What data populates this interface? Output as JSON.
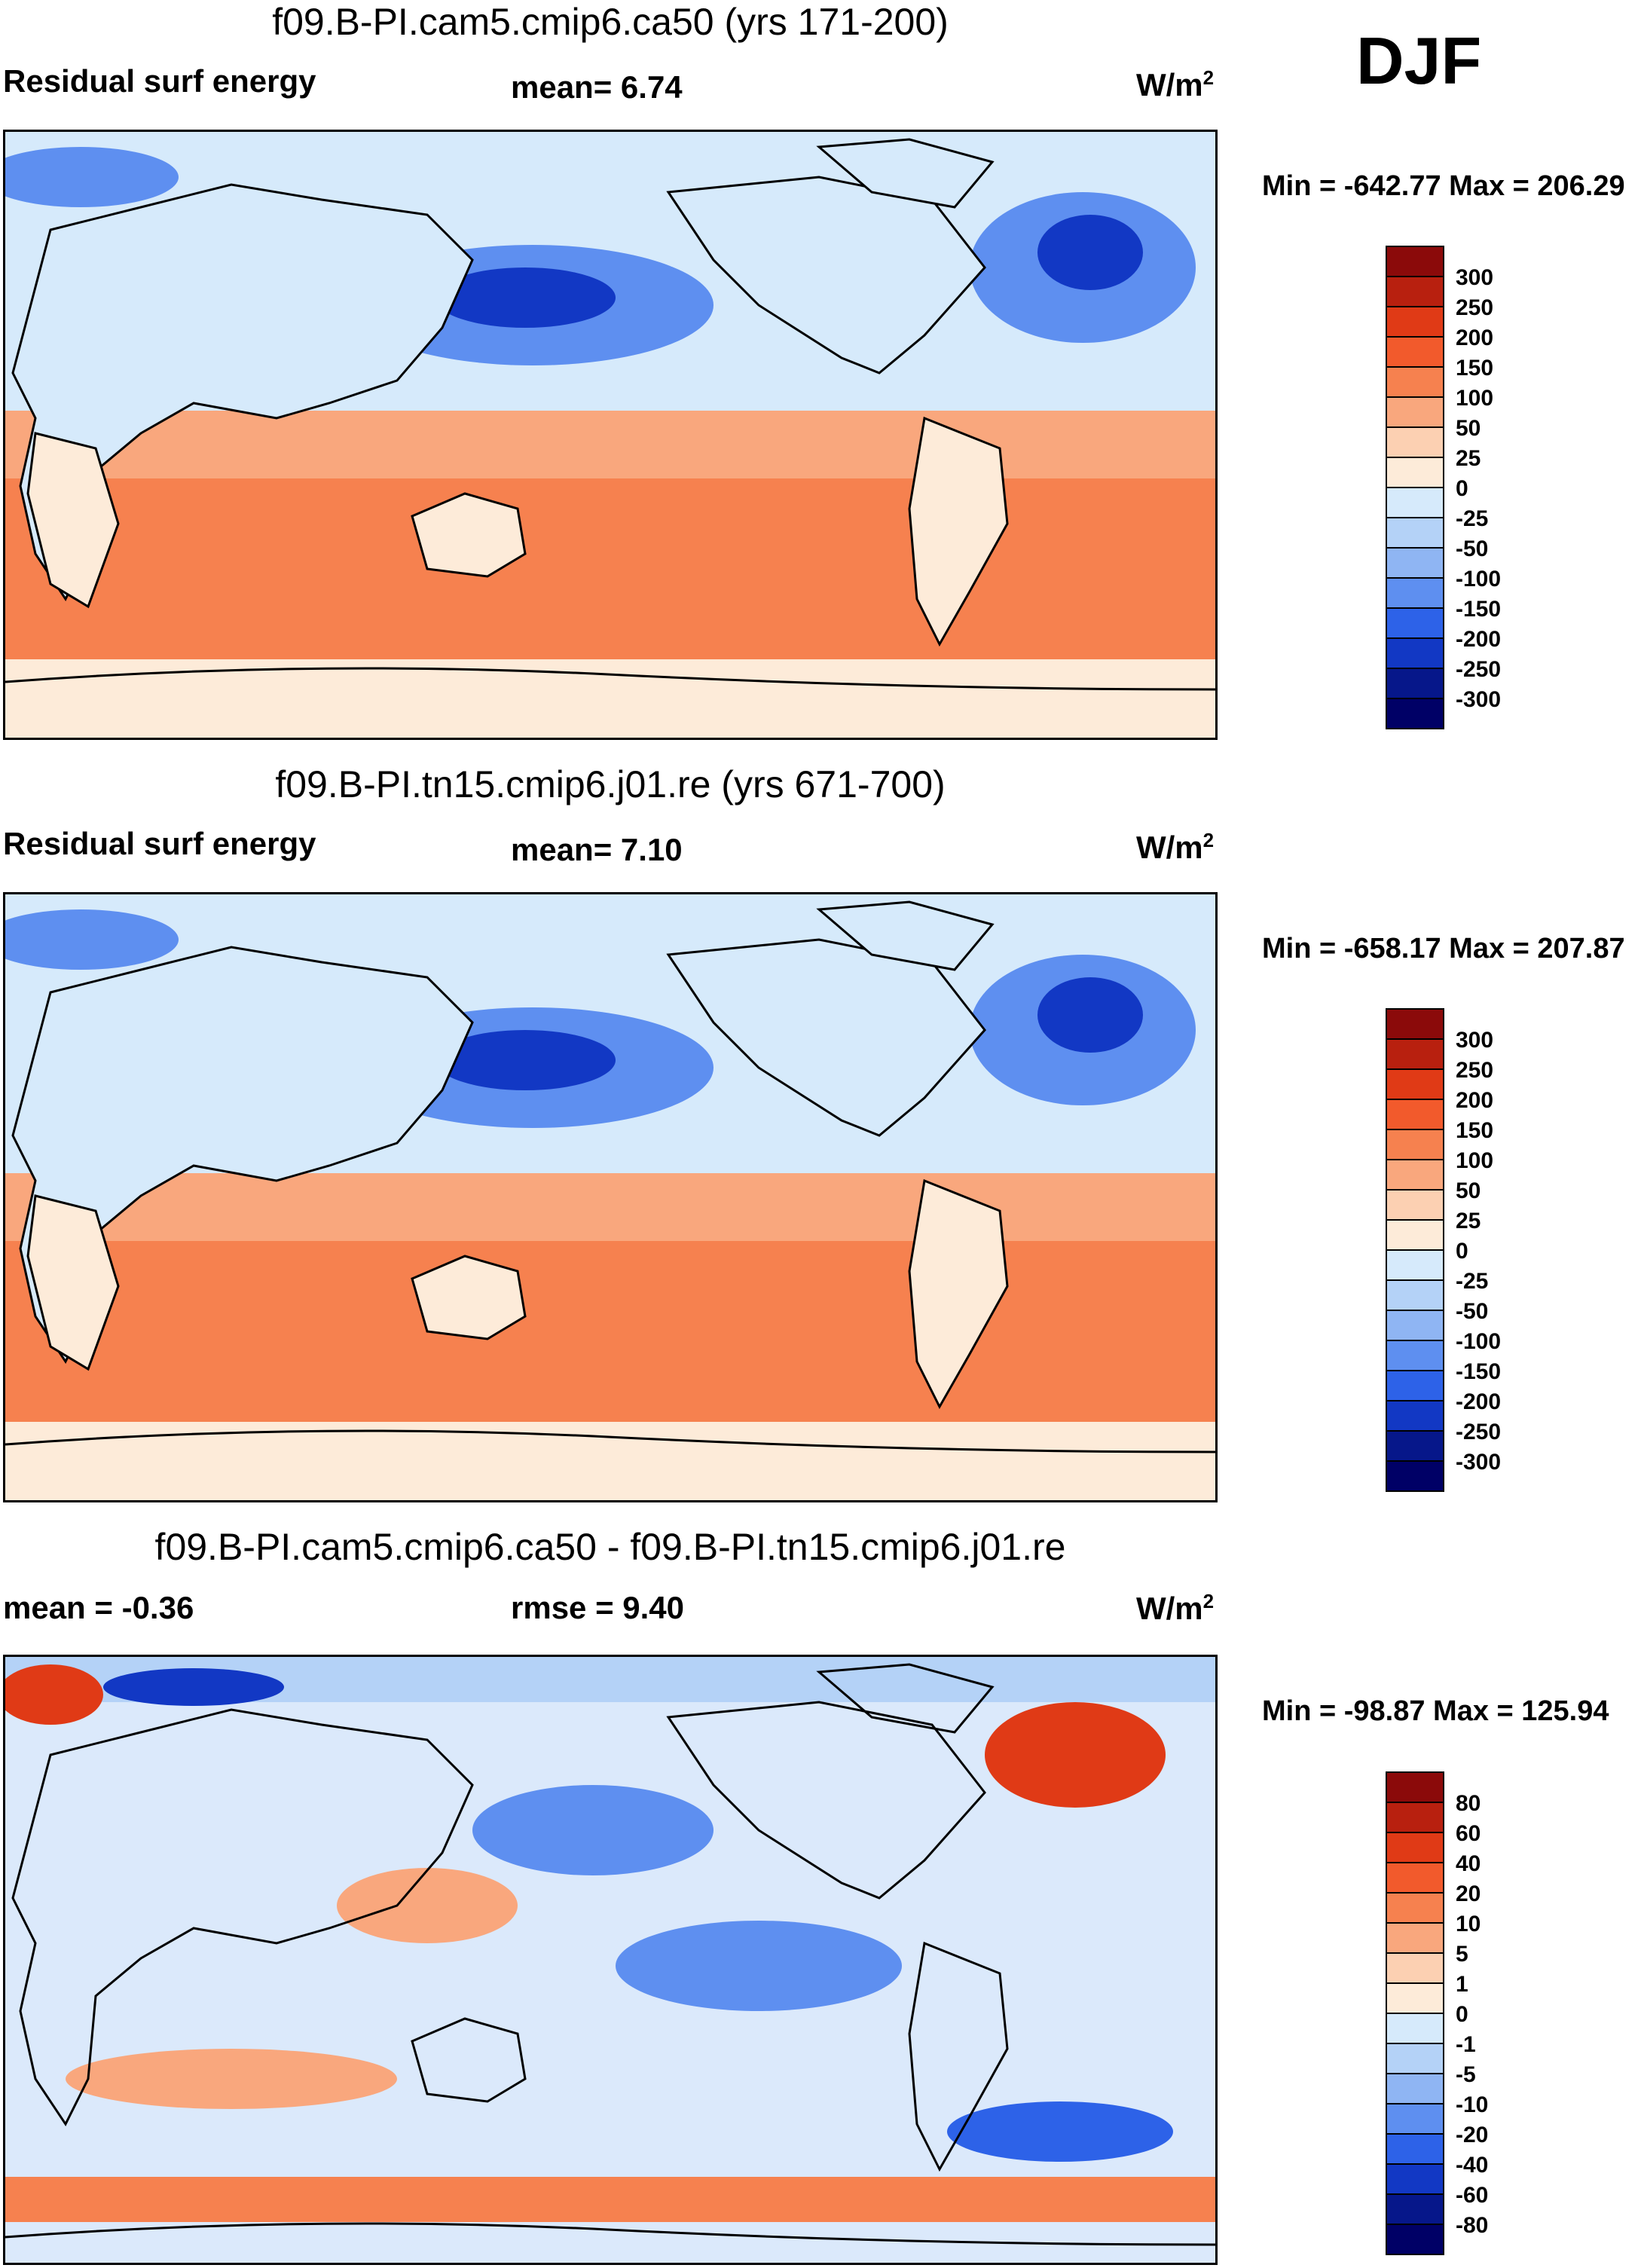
{
  "season": "DJF",
  "panels": [
    {
      "title": "f09.B-PI.cam5.cmip6.ca50 (yrs 171-200)",
      "left_label": "Residual surf energy",
      "center_label": "mean=   6.74",
      "units": "W/m",
      "units_sup": "2",
      "minmax": "Min = -642.77 Max = 206.29",
      "colorbar": [
        "300",
        "250",
        "200",
        "150",
        "100",
        "50",
        "25",
        "0",
        "-25",
        "-50",
        "-100",
        "-150",
        "-200",
        "-250",
        "-300"
      ]
    },
    {
      "title": "f09.B-PI.tn15.cmip6.j01.re (yrs 671-700)",
      "left_label": "Residual surf energy",
      "center_label": "mean=   7.10",
      "units": "W/m",
      "units_sup": "2",
      "minmax": "Min = -658.17 Max = 207.87",
      "colorbar": [
        "300",
        "250",
        "200",
        "150",
        "100",
        "50",
        "25",
        "0",
        "-25",
        "-50",
        "-100",
        "-150",
        "-200",
        "-250",
        "-300"
      ]
    },
    {
      "title": "f09.B-PI.cam5.cmip6.ca50 - f09.B-PI.tn15.cmip6.j01.re",
      "left_label": "mean =  -0.36",
      "center_label": "rmse =   9.40",
      "units": "W/m",
      "units_sup": "2",
      "minmax": "Min = -98.87 Max = 125.94",
      "colorbar": [
        "80",
        "60",
        "40",
        "20",
        "10",
        "5",
        "1",
        "0",
        "-1",
        "-5",
        "-10",
        "-20",
        "-40",
        "-60",
        "-80"
      ]
    }
  ],
  "colors": {
    "scale": [
      "#8b0a0a",
      "#b8200f",
      "#e03a16",
      "#f25a2c",
      "#f6814f",
      "#f9a77d",
      "#fcd0b2",
      "#fdebd9",
      "#d6eafb",
      "#b4d2f7",
      "#8fb5f3",
      "#5e8ff0",
      "#2d62e8",
      "#1238c4",
      "#06178a",
      "#000066"
    ]
  },
  "chart_data": [
    {
      "type": "heatmap",
      "title": "f09.B-PI.cam5.cmip6.ca50 (yrs 171-200)",
      "variable": "Residual surf energy",
      "season": "DJF",
      "mean": 6.74,
      "units": "W/m2",
      "min": -642.77,
      "max": 206.29,
      "levels": [
        300,
        250,
        200,
        150,
        100,
        50,
        25,
        0,
        -25,
        -50,
        -100,
        -150,
        -200,
        -250,
        -300
      ]
    },
    {
      "type": "heatmap",
      "title": "f09.B-PI.tn15.cmip6.j01.re (yrs 671-700)",
      "variable": "Residual surf energy",
      "season": "DJF",
      "mean": 7.1,
      "units": "W/m2",
      "min": -658.17,
      "max": 207.87,
      "levels": [
        300,
        250,
        200,
        150,
        100,
        50,
        25,
        0,
        -25,
        -50,
        -100,
        -150,
        -200,
        -250,
        -300
      ]
    },
    {
      "type": "heatmap",
      "title": "f09.B-PI.cam5.cmip6.ca50 - f09.B-PI.tn15.cmip6.j01.re",
      "season": "DJF",
      "mean": -0.36,
      "rmse": 9.4,
      "units": "W/m2",
      "min": -98.87,
      "max": 125.94,
      "levels": [
        80,
        60,
        40,
        20,
        10,
        5,
        1,
        0,
        -1,
        -5,
        -10,
        -20,
        -40,
        -60,
        -80
      ]
    }
  ]
}
